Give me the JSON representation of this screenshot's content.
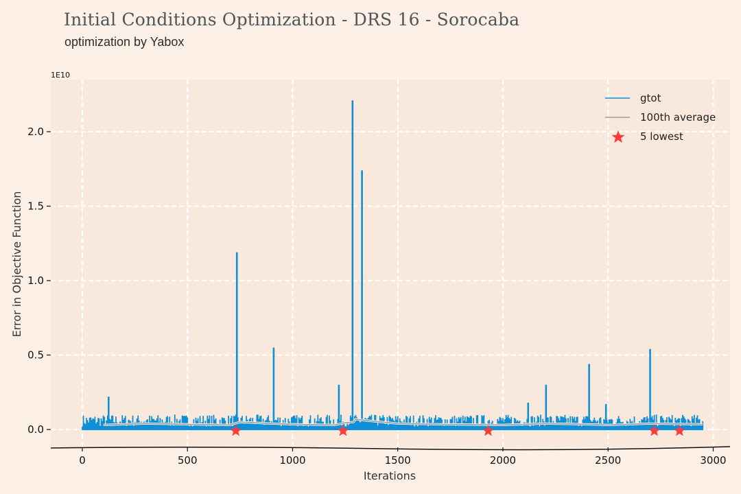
{
  "header": {
    "title": "Initial Conditions Optimization - DRS 16 - Sorocaba",
    "subtitle": "optimization by Yabox"
  },
  "chart_data": {
    "type": "line",
    "xlabel": "Iterations",
    "ylabel": "Error in Objective Function",
    "y_scale_label": "1E10",
    "xlim": [
      -150,
      3080
    ],
    "ylim": [
      -0.12,
      2.35
    ],
    "x_ticks": [
      "0",
      "500",
      "1000",
      "1500",
      "2000",
      "2500",
      "3000"
    ],
    "x_tick_values": [
      0,
      500,
      1000,
      1500,
      2000,
      2500,
      3000
    ],
    "y_ticks": [
      "0.0",
      "0.5",
      "1.0",
      "1.5",
      "2.0"
    ],
    "y_tick_values": [
      0.0,
      0.5,
      1.0,
      1.5,
      2.0
    ],
    "grid": true,
    "legend_position": "top-right",
    "colors": {
      "gtot": "#0f8fd6",
      "average": "#9a9a9a",
      "lowest": "#ff3b3b",
      "plot_bg": "#f9e8dc",
      "page_bg": "#fdf0e6"
    },
    "series": [
      {
        "name": "gtot",
        "x_range": [
          0,
          2950
        ],
        "baseline_min": 0.0,
        "baseline_max": 0.1,
        "spikes": [
          {
            "x": 125,
            "y": 0.22
          },
          {
            "x": 735,
            "y": 1.19
          },
          {
            "x": 910,
            "y": 0.55
          },
          {
            "x": 1220,
            "y": 0.3
          },
          {
            "x": 1285,
            "y": 2.21
          },
          {
            "x": 1330,
            "y": 1.74
          },
          {
            "x": 2120,
            "y": 0.18
          },
          {
            "x": 2205,
            "y": 0.3
          },
          {
            "x": 2410,
            "y": 0.44
          },
          {
            "x": 2490,
            "y": 0.17
          },
          {
            "x": 2700,
            "y": 0.54
          }
        ]
      },
      {
        "name": "100th average",
        "x": [
          100,
          300,
          500,
          700,
          750,
          900,
          1000,
          1200,
          1250,
          1290,
          1300,
          1350,
          1500,
          1700,
          2000,
          2200,
          2400,
          2500,
          2700,
          2950
        ],
        "y": [
          0.03,
          0.04,
          0.035,
          0.03,
          0.05,
          0.04,
          0.035,
          0.03,
          0.045,
          0.05,
          0.07,
          0.06,
          0.04,
          0.035,
          0.03,
          0.04,
          0.035,
          0.03,
          0.04,
          0.035
        ]
      },
      {
        "name": "5 lowest",
        "x": [
          730,
          1240,
          1930,
          2720,
          2840
        ],
        "y": [
          -0.01,
          -0.01,
          -0.01,
          -0.01,
          -0.01
        ]
      }
    ]
  }
}
